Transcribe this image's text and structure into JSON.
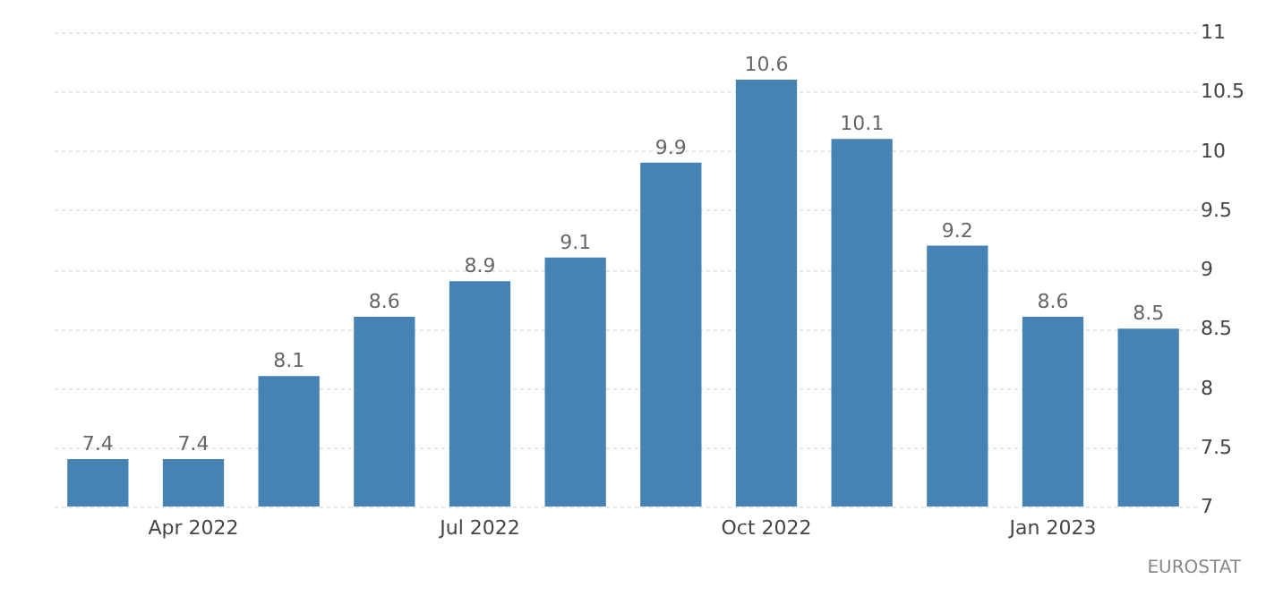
{
  "chart_data": {
    "type": "bar",
    "categories": [
      null,
      "Apr 2022",
      null,
      null,
      "Jul 2022",
      null,
      null,
      "Oct 2022",
      null,
      null,
      "Jan 2023",
      null
    ],
    "values": [
      7.4,
      7.4,
      8.1,
      8.6,
      8.9,
      9.1,
      9.9,
      10.6,
      10.1,
      9.2,
      8.6,
      8.5
    ],
    "color": "#4682b4",
    "ylim": [
      7,
      11
    ],
    "yticks": [
      7,
      7.5,
      8,
      8.5,
      9,
      9.5,
      10,
      10.5,
      11
    ],
    "grid": "y",
    "data_labels": true,
    "annotations": [
      "EUROSTAT"
    ]
  }
}
